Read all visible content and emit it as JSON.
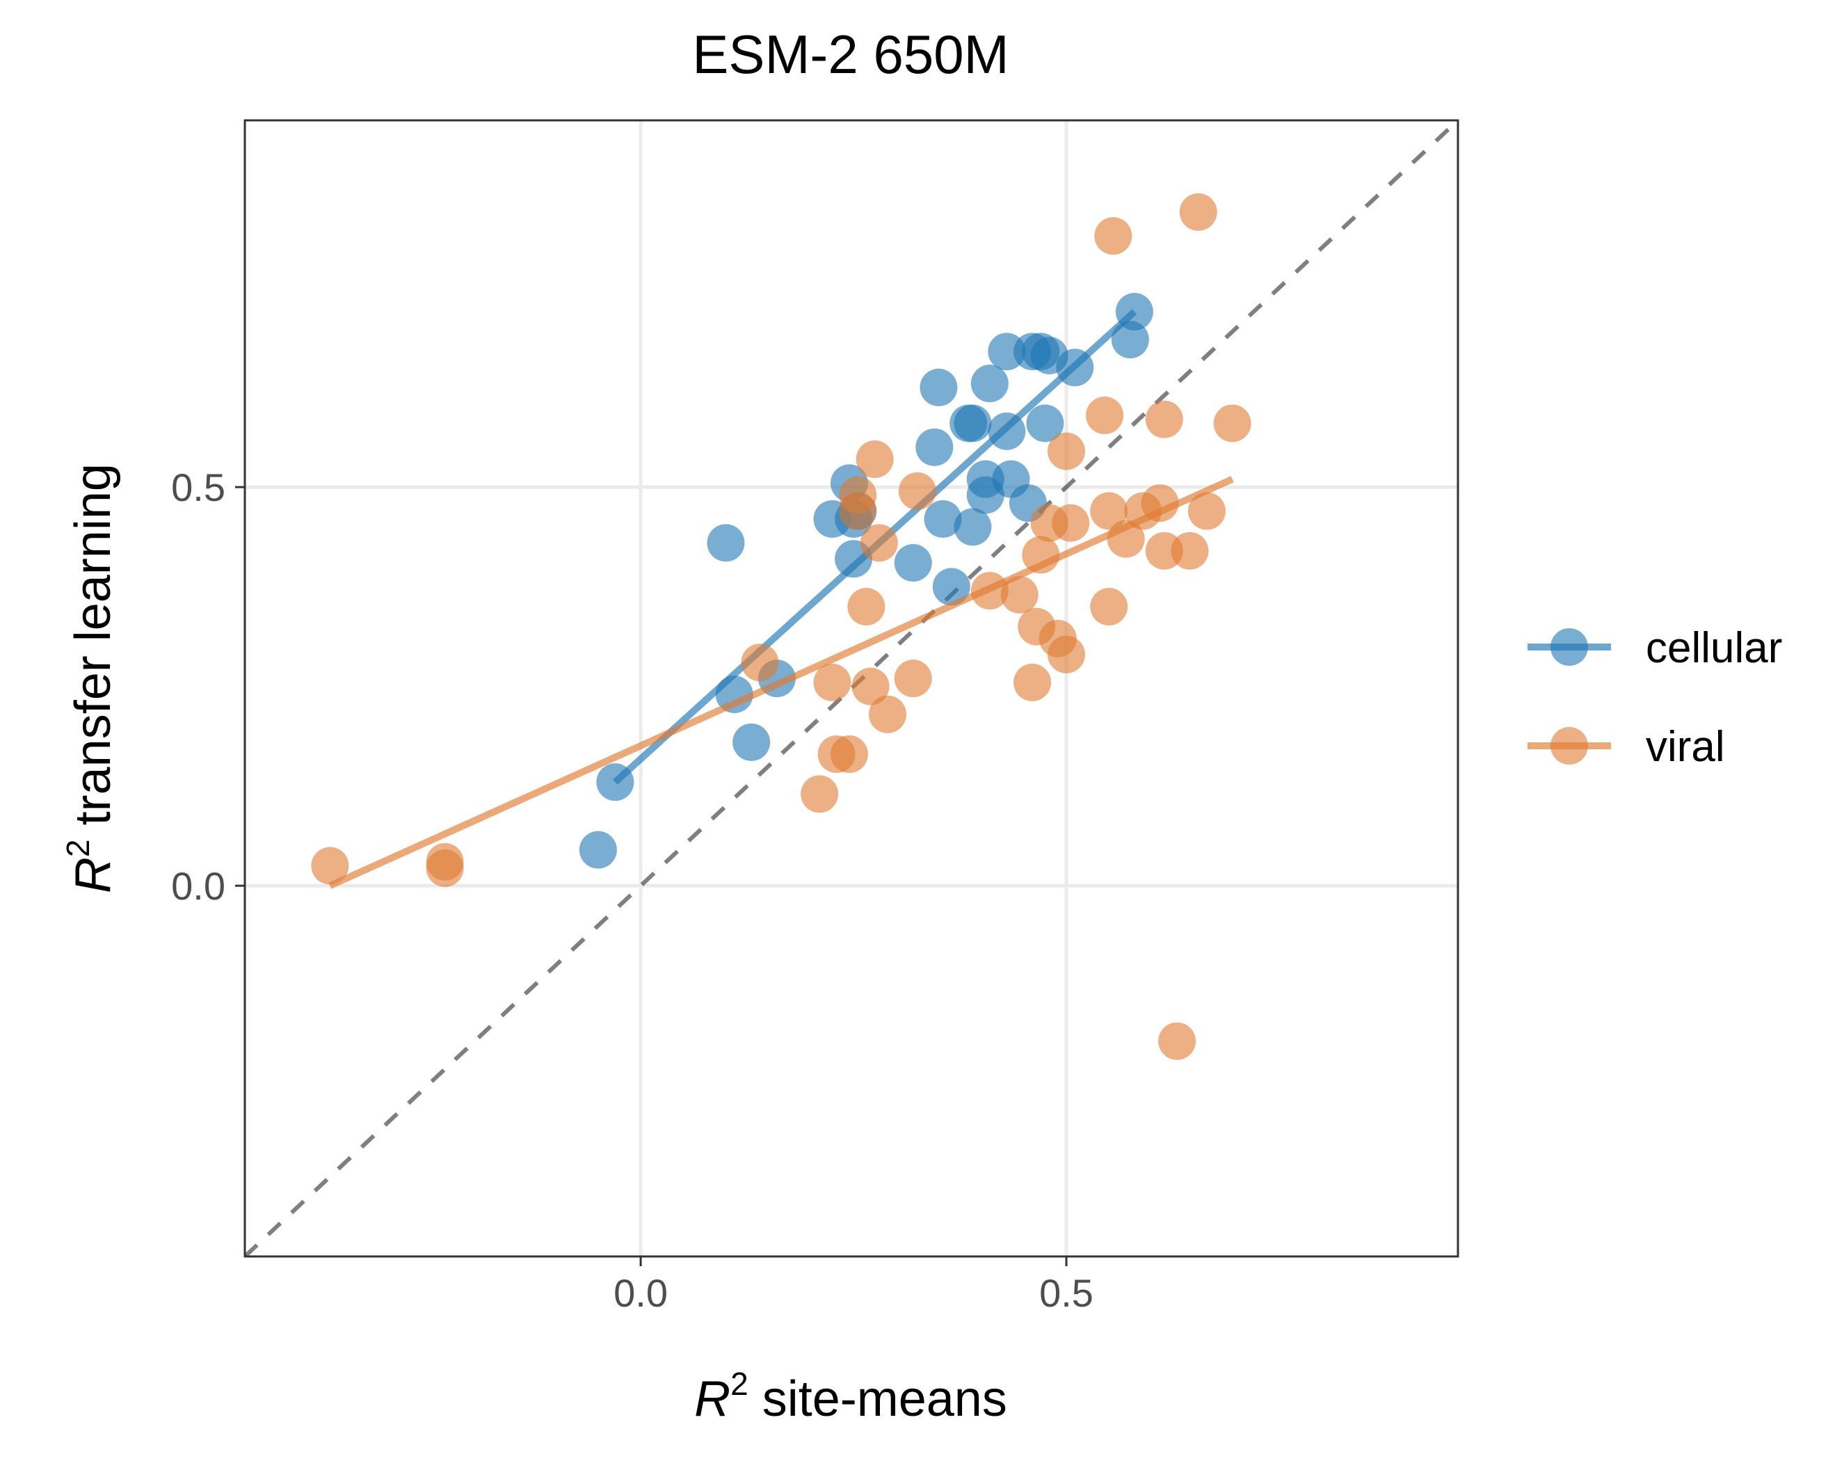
{
  "chart_data": {
    "type": "scatter",
    "title": "ESM-2 650M",
    "xlabel": {
      "symbol": "R",
      "sup": "2",
      "text": " site-means"
    },
    "ylabel": {
      "symbol": "R",
      "sup": "2",
      "text": " transfer learning"
    },
    "xlim": [
      -0.465,
      0.96
    ],
    "ylim": [
      -0.465,
      0.96
    ],
    "xticks": [
      0.0,
      0.5
    ],
    "xtick_labels": [
      "0.0",
      "0.5"
    ],
    "yticks": [
      0.0,
      0.5
    ],
    "ytick_labels": [
      "0.0",
      "0.5"
    ],
    "grid": true,
    "identity_line": true,
    "legend_position": "right",
    "series": [
      {
        "name": "cellular",
        "color": "#1f77b4",
        "fit": [
          [
            -0.03,
            0.13
          ],
          [
            0.58,
            0.72
          ]
        ],
        "points": [
          [
            -0.05,
            0.045
          ],
          [
            -0.03,
            0.13
          ],
          [
            0.1,
            0.43
          ],
          [
            0.11,
            0.24
          ],
          [
            0.13,
            0.18
          ],
          [
            0.16,
            0.26
          ],
          [
            0.225,
            0.46
          ],
          [
            0.245,
            0.505
          ],
          [
            0.25,
            0.46
          ],
          [
            0.255,
            0.47
          ],
          [
            0.25,
            0.41
          ],
          [
            0.32,
            0.405
          ],
          [
            0.345,
            0.55
          ],
          [
            0.355,
            0.46
          ],
          [
            0.35,
            0.625
          ],
          [
            0.365,
            0.375
          ],
          [
            0.385,
            0.58
          ],
          [
            0.39,
            0.58
          ],
          [
            0.39,
            0.45
          ],
          [
            0.405,
            0.51
          ],
          [
            0.405,
            0.49
          ],
          [
            0.41,
            0.63
          ],
          [
            0.43,
            0.57
          ],
          [
            0.435,
            0.51
          ],
          [
            0.43,
            0.67
          ],
          [
            0.455,
            0.48
          ],
          [
            0.46,
            0.67
          ],
          [
            0.47,
            0.67
          ],
          [
            0.475,
            0.58
          ],
          [
            0.48,
            0.665
          ],
          [
            0.51,
            0.65
          ],
          [
            0.575,
            0.685
          ],
          [
            0.58,
            0.72
          ]
        ]
      },
      {
        "name": "viral",
        "color": "#e07b32",
        "fit": [
          [
            -0.365,
            0.0
          ],
          [
            0.695,
            0.51
          ]
        ],
        "points": [
          [
            -0.365,
            0.025
          ],
          [
            -0.23,
            0.03
          ],
          [
            -0.23,
            0.022
          ],
          [
            0.14,
            0.28
          ],
          [
            0.21,
            0.115
          ],
          [
            0.225,
            0.255
          ],
          [
            0.23,
            0.165
          ],
          [
            0.245,
            0.165
          ],
          [
            0.255,
            0.47
          ],
          [
            0.255,
            0.49
          ],
          [
            0.265,
            0.35
          ],
          [
            0.27,
            0.25
          ],
          [
            0.275,
            0.535
          ],
          [
            0.28,
            0.43
          ],
          [
            0.29,
            0.215
          ],
          [
            0.32,
            0.26
          ],
          [
            0.325,
            0.495
          ],
          [
            0.41,
            0.37
          ],
          [
            0.445,
            0.365
          ],
          [
            0.46,
            0.255
          ],
          [
            0.465,
            0.325
          ],
          [
            0.47,
            0.415
          ],
          [
            0.48,
            0.455
          ],
          [
            0.49,
            0.31
          ],
          [
            0.5,
            0.29
          ],
          [
            0.5,
            0.545
          ],
          [
            0.505,
            0.455
          ],
          [
            0.545,
            0.59
          ],
          [
            0.55,
            0.47
          ],
          [
            0.55,
            0.35
          ],
          [
            0.555,
            0.815
          ],
          [
            0.57,
            0.435
          ],
          [
            0.59,
            0.47
          ],
          [
            0.61,
            0.48
          ],
          [
            0.615,
            0.585
          ],
          [
            0.615,
            0.42
          ],
          [
            0.63,
            -0.195
          ],
          [
            0.645,
            0.42
          ],
          [
            0.655,
            0.845
          ],
          [
            0.665,
            0.47
          ],
          [
            0.695,
            0.58
          ]
        ]
      }
    ]
  }
}
